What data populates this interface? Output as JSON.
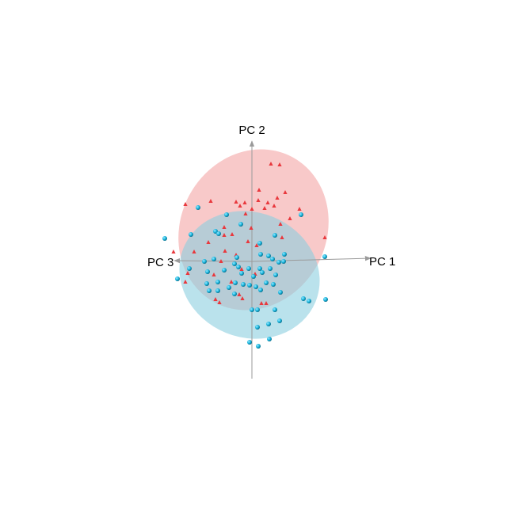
{
  "chart_data": {
    "type": "scatter",
    "projection": "3d",
    "axes": [
      "PC 1",
      "PC 2",
      "PC 3"
    ],
    "grid": false,
    "legend": "none",
    "groups": [
      {
        "color": "#e8383d",
        "ellipse_color": "#f4a2a2",
        "marker": "cone",
        "points": [
          [
            342,
            207
          ],
          [
            353,
            208
          ],
          [
            327,
            240
          ],
          [
            360,
            243
          ],
          [
            350,
            250
          ],
          [
            326,
            253
          ],
          [
            338,
            256
          ],
          [
            309,
            256
          ],
          [
            298,
            255
          ],
          [
            346,
            260
          ],
          [
            266,
            254
          ],
          [
            234,
            258
          ],
          [
            378,
            264
          ],
          [
            334,
            263
          ],
          [
            318,
            264
          ],
          [
            303,
            260
          ],
          [
            310,
            270
          ],
          [
            366,
            276
          ],
          [
            283,
            287
          ],
          [
            354,
            283
          ],
          [
            317,
            288
          ],
          [
            293,
            296
          ],
          [
            283,
            297
          ],
          [
            356,
            300
          ],
          [
            263,
            306
          ],
          [
            313,
            305
          ],
          [
            410,
            300
          ],
          [
            324,
            310
          ],
          [
            284,
            317
          ],
          [
            298,
            322
          ],
          [
            279,
            330
          ],
          [
            305,
            340
          ],
          [
            322,
            346
          ],
          [
            270,
            347
          ],
          [
            237,
            345
          ],
          [
            292,
            356
          ],
          [
            302,
            372
          ],
          [
            306,
            377
          ],
          [
            272,
            378
          ],
          [
            277,
            382
          ],
          [
            234,
            356
          ],
          [
            245,
            318
          ],
          [
            219,
            318
          ],
          [
            330,
            383
          ],
          [
            336,
            383
          ]
        ]
      },
      {
        "color": "#19b8e0",
        "ellipse_color": "#9fd8e6",
        "marker": "sphere",
        "points": [
          [
            250,
            262
          ],
          [
            286,
            271
          ],
          [
            380,
            271
          ],
          [
            347,
            297
          ],
          [
            304,
            283
          ],
          [
            241,
            296
          ],
          [
            272,
            292
          ],
          [
            276,
            295
          ],
          [
            208,
            301
          ],
          [
            328,
            307
          ],
          [
            329,
            321
          ],
          [
            339,
            323
          ],
          [
            359,
            321
          ],
          [
            358,
            330
          ],
          [
            344,
            327
          ],
          [
            299,
            325
          ],
          [
            296,
            333
          ],
          [
            301,
            337
          ],
          [
            314,
            339
          ],
          [
            328,
            339
          ],
          [
            341,
            339
          ],
          [
            352,
            331
          ],
          [
            258,
            330
          ],
          [
            270,
            327
          ],
          [
            239,
            339
          ],
          [
            262,
            343
          ],
          [
            283,
            341
          ],
          [
            305,
            345
          ],
          [
            320,
            349
          ],
          [
            331,
            344
          ],
          [
            348,
            347
          ],
          [
            224,
            352
          ],
          [
            261,
            358
          ],
          [
            275,
            356
          ],
          [
            297,
            357
          ],
          [
            307,
            359
          ],
          [
            336,
            357
          ],
          [
            345,
            359
          ],
          [
            329,
            366
          ],
          [
            315,
            360
          ],
          [
            289,
            363
          ],
          [
            275,
            367
          ],
          [
            296,
            371
          ],
          [
            354,
            369
          ],
          [
            383,
            377
          ],
          [
            390,
            380
          ],
          [
            411,
            378
          ],
          [
            318,
            391
          ],
          [
            325,
            391
          ],
          [
            347,
            391
          ],
          [
            325,
            413
          ],
          [
            353,
            405
          ],
          [
            339,
            409
          ],
          [
            340,
            428
          ],
          [
            315,
            432
          ],
          [
            326,
            437
          ],
          [
            410,
            324
          ],
          [
            264,
            367
          ],
          [
            323,
            362
          ]
        ]
      }
    ]
  }
}
